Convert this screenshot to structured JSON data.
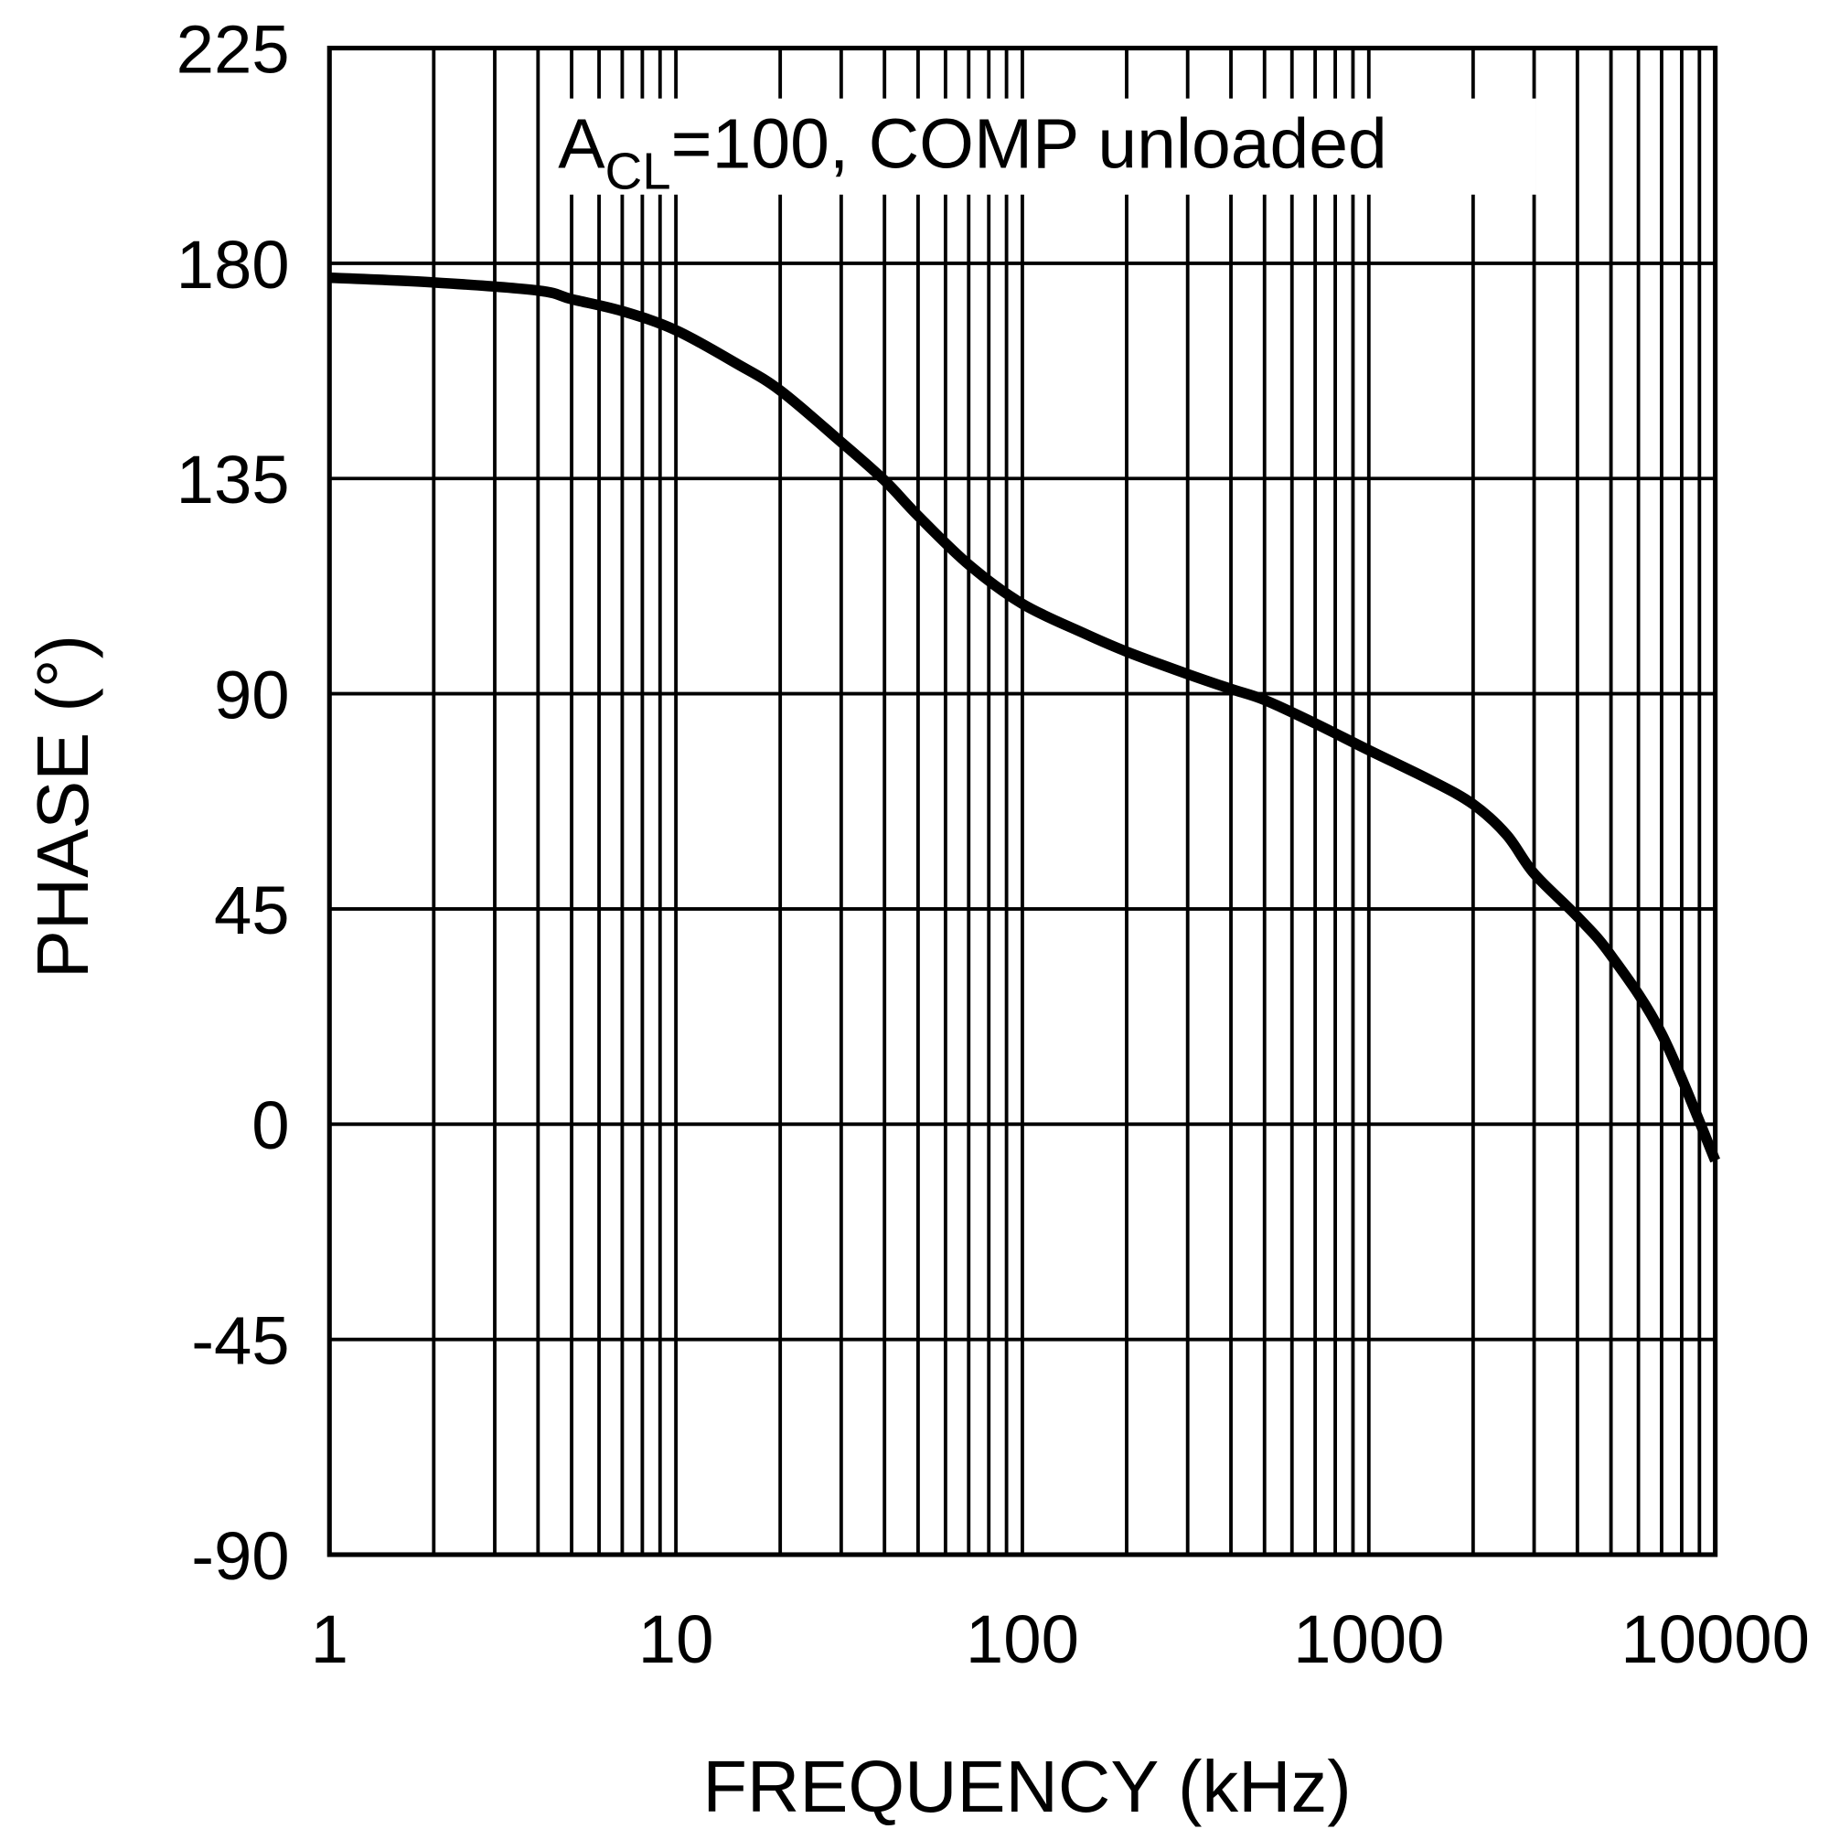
{
  "chart_data": {
    "type": "line",
    "title": "",
    "annotation": {
      "main": "A",
      "sub": "CL",
      "rest": "=100, COMP unloaded"
    },
    "xlabel": "FREQUENCY (kHz)",
    "ylabel": "PHASE (°)",
    "xscale": "log",
    "xlim": [
      1,
      10000
    ],
    "ylim": [
      -90,
      225
    ],
    "xticks": [
      1,
      10,
      100,
      1000,
      10000
    ],
    "xtick_labels": [
      "1",
      "10",
      "100",
      "1000",
      "10000"
    ],
    "yticks": [
      -90,
      -45,
      0,
      45,
      90,
      135,
      180,
      225
    ],
    "ytick_labels": [
      "-90",
      "-45",
      "0",
      "45",
      "90",
      "135",
      "180",
      "225"
    ],
    "grid": true,
    "line_color": "#000000",
    "series": [
      {
        "x": [
          1,
          2,
          4,
          5,
          7,
          10,
          15,
          20,
          30,
          40,
          50,
          70,
          100,
          150,
          200,
          300,
          400,
          500,
          700,
          1000,
          1500,
          2000,
          2500,
          3000,
          4000,
          5000,
          7000,
          10000
        ],
        "y": [
          177,
          176,
          174.3,
          172.5,
          170,
          166,
          159,
          153.4,
          142.6,
          134.6,
          127.2,
          117,
          108.8,
          102.7,
          98.8,
          94.1,
          91,
          88.7,
          83.8,
          78.2,
          72,
          66.9,
          60.5,
          52.4,
          43.4,
          35.3,
          18.9,
          -7.6
        ]
      }
    ]
  }
}
